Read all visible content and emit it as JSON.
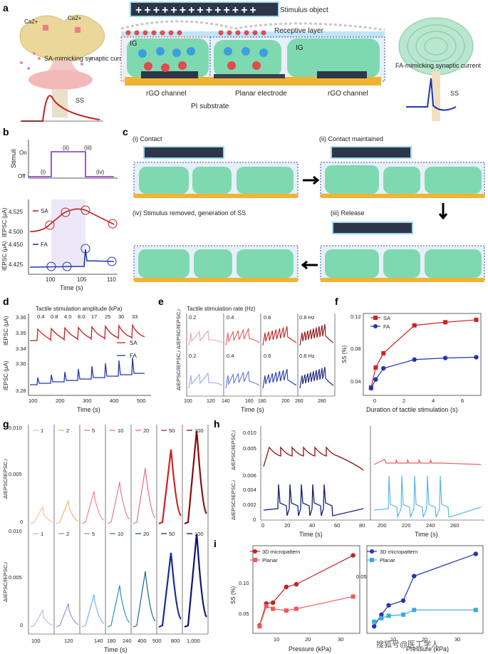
{
  "panels": {
    "a": {
      "label": "a",
      "stimulus_object": "Stimulus object",
      "receptive_layer": "Receptive layer",
      "ig_left": "IG",
      "ig_right": "IG",
      "sa_label": "SA-mimicking synaptic current",
      "fa_label": "FA-mimicking synaptic current",
      "ss_left": "SS",
      "ss_right": "SS",
      "rgo_left": "rGO channel",
      "planar_electrode": "Planar electrode",
      "rgo_right": "rGO channel",
      "pi_substrate": "PI substrate",
      "ca_left": "Ca2+",
      "ca_right": "Ca2+",
      "colors": {
        "ig": "#7fd9b0",
        "electrode": "#f2b233",
        "dark": "#2d3648",
        "cation": "#3aa0e0",
        "anion": "#e34a4a"
      }
    },
    "b": {
      "label": "b",
      "stimuli_ylabel": "Stimuli",
      "on": "On",
      "off": "Off",
      "phases": [
        "(i)",
        "(ii)",
        "(iii)",
        "(iv)"
      ],
      "sa": "SA",
      "fa": "FA",
      "ylabel_top": "IEPSC (μA)",
      "ylabel_bottom": "IEPSC (μA)",
      "xlabel": "Time (s)",
      "sa_ticks": [
        "4.525",
        "4.500"
      ],
      "fa_ticks": [
        "4.450",
        "4.425"
      ],
      "x_ticks": [
        "100",
        "105",
        "110"
      ]
    },
    "c": {
      "label": "c",
      "step1": "(i) Contact",
      "step2": "(ii) Contact maintained",
      "step3": "(iii) Release",
      "step4": "(iv) Stimulus removed, generation of SS"
    },
    "d": {
      "label": "d",
      "title": "Tactile stimulation amplitude (kPa)",
      "amplitudes": [
        "0.4",
        "0.8",
        "4.0",
        "8.0",
        "17",
        "25",
        "30",
        "33"
      ],
      "sa": "SA",
      "fa": "FA",
      "ylabel_top": "IEPSC (μA)",
      "ylabel_bottom": "IEPSC (μA)",
      "y_ticks_top": [
        "3.36",
        "3.35",
        "3.34"
      ],
      "y_ticks_bottom": [
        "3.30",
        "3.28"
      ],
      "x_ticks": [
        "100",
        "200",
        "300",
        "400",
        "500"
      ],
      "xlabel": "Time (s)"
    },
    "e": {
      "label": "e",
      "title": "Tactile stimulation rate (Hz)",
      "rates_top": [
        "0.2",
        "0.4",
        "0.6",
        "0.8 Hz"
      ],
      "rates_bottom": [
        "0.2",
        "0.4",
        "0.6",
        "0.8 Hz"
      ],
      "ylabel_top": "ΔIEPSC/IEPSC,i",
      "ylabel_bottom": "ΔIEPSC/IEPSC,i",
      "x_ticks": [
        "100",
        "120",
        "140",
        "160",
        "180",
        "200",
        "260",
        "280"
      ],
      "xlabel": "Time (s)"
    },
    "f": {
      "label": "f",
      "ylabel": "SS (%)",
      "xlabel": "Duration of tactile stimulation (s)",
      "y_ticks": [
        "0.12",
        "0.08",
        "0.04"
      ],
      "x_ticks": [
        "0",
        "2",
        "4",
        "6"
      ]
    },
    "g": {
      "label": "g",
      "ylabel_top": "ΔIEPSC/IEPSC,i",
      "ylabel_bottom": "ΔIEPSC/IEPSC,i",
      "y_ticks_top": [
        "0.010",
        "0.005",
        "0"
      ],
      "y_ticks_bottom": [
        "0.010",
        "0.005",
        "0"
      ],
      "x_ticks": [
        "100",
        "120",
        "140",
        "180",
        "240",
        "400",
        "500",
        "800",
        "1,000"
      ],
      "xlabel": "Time (s)",
      "groups": [
        "1",
        "2",
        "5",
        "10",
        "20",
        "50",
        "100"
      ]
    },
    "h": {
      "label": "h",
      "ylabel_top": "ΔIEPSC/IEPSC,i",
      "ylabel_bottom": "ΔIEPSC/IEPSC,i",
      "y_ticks_top": [
        "0.010",
        "0.005"
      ],
      "y_ticks_bottom": [
        "0.006",
        "0.004",
        "0.002",
        "0"
      ],
      "x_ticks_left": [
        "0",
        "20",
        "40",
        "60",
        "80"
      ],
      "x_ticks_right": [
        "200",
        "220",
        "240",
        "260"
      ],
      "xlabel": "Time (s)"
    },
    "i": {
      "label": "i",
      "ylabel": "SS (%)",
      "xlabel": "Pressure (kPa)",
      "y_ticks_left": [
        "0.10",
        "0.05"
      ],
      "y_ticks_right": [
        "0.05"
      ],
      "x_ticks": [
        "10",
        "20",
        "30"
      ],
      "legend_3d": "3D micropattern",
      "legend_planar": "Planar"
    },
    "watermark": "搜狐号@医工学人"
  },
  "chart_data": [
    {
      "panel": "f",
      "type": "scatter",
      "xlabel": "Duration of tactile stimulation (s)",
      "ylabel": "SS (%)",
      "xlim": [
        -0.3,
        7.3
      ],
      "ylim": [
        0.025,
        0.128
      ],
      "series": [
        {
          "name": "SA",
          "color": "#cc2222",
          "marker": "square",
          "x": [
            0.2,
            0.5,
            1,
            3,
            5,
            7
          ],
          "values": [
            0.035,
            0.06,
            0.078,
            0.113,
            0.117,
            0.12
          ]
        },
        {
          "name": "FA",
          "color": "#2236b0",
          "marker": "circle",
          "x": [
            0.2,
            0.5,
            1,
            3,
            5,
            7
          ],
          "values": [
            0.034,
            0.045,
            0.059,
            0.07,
            0.072,
            0.073
          ]
        }
      ]
    },
    {
      "panel": "i-left",
      "type": "line",
      "xlabel": "Pressure (kPa)",
      "ylabel": "SS (%)",
      "xlim": [
        2,
        34
      ],
      "ylim": [
        0.035,
        0.135
      ],
      "series": [
        {
          "name": "3D micropattern",
          "color": "#c42020",
          "marker": "circle",
          "x": [
            4,
            6,
            8,
            12,
            15,
            32
          ],
          "values": [
            0.044,
            0.069,
            0.07,
            0.088,
            0.091,
            0.124
          ]
        },
        {
          "name": "Planar",
          "color": "#ee5a5a",
          "marker": "square",
          "x": [
            4,
            6,
            8,
            12,
            15,
            32
          ],
          "values": [
            0.043,
            0.066,
            0.063,
            0.061,
            0.063,
            0.077
          ]
        }
      ]
    },
    {
      "panel": "i-right",
      "type": "line",
      "xlabel": "Pressure (kPa)",
      "ylabel": "SS (%)",
      "xlim": [
        2,
        34
      ],
      "ylim": [
        0.0,
        0.075
      ],
      "series": [
        {
          "name": "3D micropattern",
          "color": "#2236b0",
          "marker": "circle",
          "x": [
            4,
            6,
            8,
            12,
            15,
            32
          ],
          "values": [
            0.006,
            0.016,
            0.024,
            0.028,
            0.049,
            0.068
          ]
        },
        {
          "name": "Planar",
          "color": "#3aa9e0",
          "marker": "square",
          "x": [
            4,
            6,
            8,
            12,
            15,
            32
          ],
          "values": [
            0.01,
            0.013,
            0.015,
            0.016,
            0.02,
            0.02
          ]
        }
      ]
    }
  ]
}
